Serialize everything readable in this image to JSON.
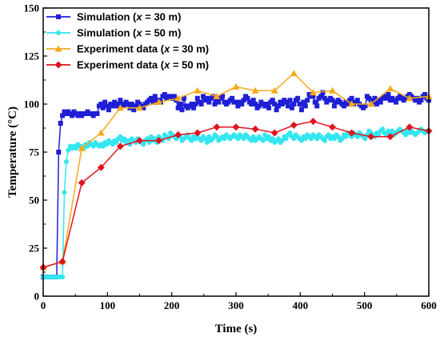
{
  "chart_data": {
    "type": "line",
    "xlabel": "Time (s)",
    "ylabel": "Temperature (°C)",
    "xlim": [
      0,
      600
    ],
    "ylim": [
      0,
      150
    ],
    "x_ticks": [
      0,
      100,
      200,
      300,
      400,
      500,
      600
    ],
    "y_ticks": [
      0,
      25,
      50,
      75,
      100,
      125,
      150
    ],
    "grid": false,
    "legend_position": "top-left",
    "series": [
      {
        "name": "Simulation (x = 30 m)",
        "name_parts": [
          "Simulation (",
          "x",
          " = 30 m)"
        ],
        "color": "#1f1fd6",
        "marker": "square",
        "x": [
          0,
          3,
          6,
          9,
          12,
          15,
          18,
          21,
          24,
          27,
          30,
          33,
          36,
          39,
          42,
          45,
          48,
          51,
          54,
          57,
          60,
          63,
          66,
          69,
          72,
          75,
          78,
          81,
          84,
          87,
          90,
          93,
          96,
          99,
          102,
          105,
          108,
          111,
          114,
          117,
          120,
          123,
          126,
          129,
          132,
          135,
          138,
          141,
          144,
          147,
          150,
          153,
          156,
          159,
          162,
          165,
          168,
          171,
          174,
          177,
          180,
          183,
          186,
          189,
          192,
          195,
          198,
          201,
          204,
          207,
          210,
          213,
          216,
          219,
          222,
          225,
          228,
          231,
          234,
          237,
          240,
          243,
          246,
          249,
          252,
          255,
          258,
          261,
          264,
          267,
          270,
          273,
          276,
          279,
          282,
          285,
          288,
          291,
          294,
          297,
          300,
          303,
          306,
          309,
          312,
          315,
          318,
          321,
          324,
          327,
          330,
          333,
          336,
          339,
          342,
          345,
          348,
          351,
          354,
          357,
          360,
          363,
          366,
          369,
          372,
          375,
          378,
          381,
          384,
          387,
          390,
          393,
          396,
          399,
          402,
          405,
          408,
          411,
          414,
          417,
          420,
          423,
          426,
          429,
          432,
          435,
          438,
          441,
          444,
          447,
          450,
          453,
          456,
          459,
          462,
          465,
          468,
          471,
          474,
          477,
          480,
          483,
          486,
          489,
          492,
          495,
          498,
          501,
          504,
          507,
          510,
          513,
          516,
          519,
          522,
          525,
          528,
          531,
          534,
          537,
          540,
          543,
          546,
          549,
          552,
          555,
          558,
          561,
          564,
          567,
          570,
          573,
          576,
          579,
          582,
          585,
          588,
          591,
          594,
          597,
          600
        ],
        "y": [
          10,
          10,
          10,
          10,
          10,
          10,
          10,
          10,
          75,
          90,
          94,
          96,
          95,
          96,
          95,
          94,
          96,
          95,
          94,
          95,
          94,
          95,
          95,
          96,
          95,
          95,
          94,
          95,
          95,
          99,
          100,
          98,
          101,
          99,
          97,
          100,
          99,
          101,
          99,
          100,
          102,
          100,
          99,
          101,
          100,
          98,
          100,
          97,
          99,
          101,
          100,
          99,
          98,
          100,
          101,
          102,
          103,
          101,
          104,
          102,
          102,
          101,
          104,
          105,
          103,
          104,
          104,
          103,
          104,
          102,
          98,
          100,
          97,
          103,
          99,
          98,
          99,
          100,
          98,
          100,
          103,
          101,
          100,
          104,
          102,
          103,
          101,
          103,
          104,
          100,
          102,
          101,
          103,
          104,
          101,
          100,
          101,
          102,
          103,
          101,
          101,
          99,
          101,
          100,
          102,
          104,
          103,
          101,
          100,
          102,
          100,
          98,
          99,
          101,
          100,
          99,
          100,
          98,
          101,
          102,
          100,
          97,
          99,
          101,
          100,
          102,
          101,
          99,
          102,
          98,
          100,
          102,
          103,
          100,
          97,
          101,
          99,
          102,
          105,
          104,
          104,
          101,
          99,
          103,
          104,
          106,
          103,
          101,
          102,
          103,
          102,
          99,
          101,
          102,
          101,
          100,
          99,
          101,
          100,
          102,
          103,
          100,
          101,
          102,
          100,
          99,
          98,
          99,
          104,
          103,
          102,
          101,
          103,
          100,
          102,
          101,
          103,
          104,
          103,
          105,
          102,
          103,
          102,
          101,
          103,
          104,
          103,
          102,
          103,
          104,
          105,
          104,
          103,
          102,
          103,
          101,
          102,
          104,
          105,
          103,
          102
        ]
      },
      {
        "name": "Simulation (x = 50 m)",
        "name_parts": [
          "Simulation (",
          "x",
          " = 50 m)"
        ],
        "color": "#33e6f0",
        "marker": "circle",
        "x": [
          0,
          3,
          6,
          9,
          12,
          15,
          18,
          21,
          24,
          27,
          30,
          33,
          36,
          39,
          42,
          45,
          48,
          51,
          54,
          57,
          60,
          63,
          66,
          69,
          72,
          75,
          78,
          81,
          84,
          87,
          90,
          93,
          96,
          99,
          102,
          105,
          108,
          111,
          114,
          117,
          120,
          123,
          126,
          129,
          132,
          135,
          138,
          141,
          144,
          147,
          150,
          153,
          156,
          159,
          162,
          165,
          168,
          171,
          174,
          177,
          180,
          183,
          186,
          189,
          192,
          195,
          198,
          201,
          204,
          207,
          210,
          213,
          216,
          219,
          222,
          225,
          228,
          231,
          234,
          237,
          240,
          243,
          246,
          249,
          252,
          255,
          258,
          261,
          264,
          267,
          270,
          273,
          276,
          279,
          282,
          285,
          288,
          291,
          294,
          297,
          300,
          303,
          306,
          309,
          312,
          315,
          318,
          321,
          324,
          327,
          330,
          333,
          336,
          339,
          342,
          345,
          348,
          351,
          354,
          357,
          360,
          363,
          366,
          369,
          372,
          375,
          378,
          381,
          384,
          387,
          390,
          393,
          396,
          399,
          402,
          405,
          408,
          411,
          414,
          417,
          420,
          423,
          426,
          429,
          432,
          435,
          438,
          441,
          444,
          447,
          450,
          453,
          456,
          459,
          462,
          465,
          468,
          471,
          474,
          477,
          480,
          483,
          486,
          489,
          492,
          495,
          498,
          501,
          504,
          507,
          510,
          513,
          516,
          519,
          522,
          525,
          528,
          531,
          534,
          537,
          540,
          543,
          546,
          549,
          552,
          555,
          558,
          561,
          564,
          567,
          570,
          573,
          576,
          579,
          582,
          585,
          588,
          591,
          594,
          597,
          600
        ],
        "y": [
          10,
          10,
          10,
          10,
          10,
          10,
          10,
          10,
          10,
          10,
          10,
          54,
          70,
          76,
          78,
          77,
          78,
          77,
          79,
          78,
          78,
          77,
          79,
          78,
          80,
          79,
          78,
          80,
          79,
          78,
          79,
          78,
          80,
          79,
          81,
          80,
          79,
          81,
          80,
          82,
          83,
          81,
          82,
          80,
          81,
          79,
          82,
          81,
          80,
          82,
          81,
          80,
          79,
          81,
          82,
          80,
          83,
          81,
          82,
          80,
          83,
          82,
          81,
          84,
          83,
          82,
          85,
          84,
          83,
          82,
          84,
          83,
          81,
          82,
          83,
          84,
          82,
          81,
          83,
          82,
          84,
          82,
          81,
          83,
          82,
          80,
          83,
          81,
          82,
          84,
          83,
          81,
          82,
          83,
          82,
          84,
          83,
          82,
          83,
          84,
          83,
          82,
          84,
          83,
          82,
          84,
          83,
          82,
          81,
          83,
          81,
          82,
          83,
          82,
          81,
          84,
          82,
          83,
          81,
          82,
          80,
          81,
          82,
          80,
          81,
          83,
          82,
          84,
          85,
          83,
          82,
          84,
          83,
          82,
          81,
          83,
          82,
          84,
          83,
          82,
          84,
          83,
          82,
          84,
          83,
          82,
          81,
          83,
          84,
          82,
          83,
          82,
          84,
          83,
          81,
          82,
          84,
          83,
          85,
          84,
          83,
          85,
          84,
          83,
          85,
          84,
          83,
          82,
          84,
          86,
          85,
          84,
          83,
          85,
          84,
          86,
          87,
          85,
          84,
          86,
          85,
          86,
          84,
          85,
          86,
          87,
          86,
          85,
          84,
          86,
          85,
          86,
          85,
          84,
          85,
          86,
          87,
          86,
          85,
          86,
          86
        ]
      },
      {
        "name": "Experiment data (x = 30 m)",
        "name_parts": [
          "Experiment data (",
          "x",
          " = 30 m)"
        ],
        "color": "#f5a91c",
        "marker": "triangle",
        "x": [
          0,
          30,
          60,
          90,
          120,
          150,
          180,
          210,
          240,
          270,
          300,
          330,
          360,
          390,
          420,
          450,
          480,
          510,
          540,
          570,
          600
        ],
        "y": [
          15,
          18,
          77,
          85,
          98,
          98,
          101,
          103,
          107,
          104,
          109,
          107,
          107,
          116,
          106,
          107,
          100,
          100,
          108,
          103,
          104
        ]
      },
      {
        "name": "Experiment data (x = 50 m)",
        "name_parts": [
          "Experiment data (",
          "x",
          " = 50 m)"
        ],
        "color": "#e0141e",
        "marker": "diamond",
        "x": [
          0,
          30,
          60,
          90,
          120,
          150,
          180,
          210,
          240,
          270,
          300,
          330,
          360,
          390,
          420,
          450,
          480,
          510,
          540,
          570,
          600
        ],
        "y": [
          15,
          18,
          59,
          67,
          78,
          81,
          81,
          84,
          85,
          88,
          88,
          87,
          85,
          89,
          91,
          88,
          85,
          83,
          83,
          88,
          86
        ]
      }
    ]
  }
}
